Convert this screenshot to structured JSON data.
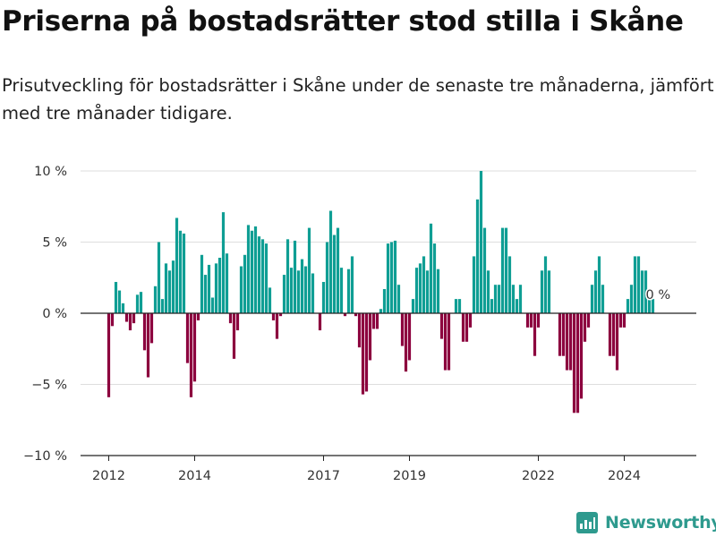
{
  "chart_data": {
    "type": "bar",
    "title": "Priserna på bostadsrätter stod stilla i Skåne",
    "subtitle": "Prisutveckling för bostadsrätter i Skåne under de senaste tre månaderna, jämfört med tre månader tidigare.",
    "x_start_year": 2012,
    "x_start_month": 1,
    "values": [
      -5.9,
      -0.9,
      2.2,
      1.6,
      0.7,
      -0.6,
      -1.2,
      -0.7,
      1.3,
      1.5,
      -2.6,
      -4.5,
      -2.1,
      1.9,
      5.0,
      1.0,
      3.5,
      3.0,
      3.7,
      6.7,
      5.8,
      5.6,
      -3.5,
      -5.9,
      -4.8,
      -0.5,
      4.1,
      2.7,
      3.4,
      1.1,
      3.5,
      3.9,
      7.1,
      4.2,
      -0.7,
      -3.2,
      -1.2,
      3.3,
      4.1,
      6.2,
      5.8,
      6.1,
      5.4,
      5.2,
      4.9,
      1.8,
      -0.5,
      -1.8,
      -0.2,
      2.7,
      5.2,
      3.2,
      5.1,
      3.0,
      3.8,
      3.3,
      6.0,
      2.8,
      0.0,
      -1.2,
      2.2,
      5.0,
      7.2,
      5.5,
      6.0,
      3.2,
      -0.2,
      3.1,
      4.0,
      -0.2,
      -2.4,
      -5.7,
      -5.5,
      -3.3,
      -1.1,
      -1.1,
      0.3,
      1.7,
      4.9,
      5.0,
      5.1,
      2.0,
      -2.3,
      -4.1,
      -3.3,
      1.0,
      3.2,
      3.5,
      4.0,
      3.0,
      6.3,
      4.9,
      3.1,
      -1.8,
      -4.0,
      -4.0,
      0.0,
      1.0,
      1.0,
      -2.0,
      -2.0,
      -1.0,
      4.0,
      8.0,
      10.0,
      6.0,
      3.0,
      1.0,
      2.0,
      2.0,
      6.0,
      6.0,
      4.0,
      2.0,
      1.0,
      2.0,
      0.0,
      -1.0,
      -1.0,
      -3.0,
      -1.0,
      3.0,
      4.0,
      3.0,
      0.0,
      0.0,
      -3.0,
      -3.0,
      -4.0,
      -4.0,
      -7.0,
      -7.0,
      -6.0,
      -2.0,
      -1.0,
      2.0,
      3.0,
      4.0,
      2.0,
      0.0,
      -3.0,
      -3.0,
      -4.0,
      -1.0,
      -1.0,
      1.0,
      2.0,
      4.0,
      4.0,
      3.0,
      3.0,
      1.0,
      1.0,
      0.0
    ],
    "ylim": [
      -10,
      10
    ],
    "yticks": [
      -10,
      -5,
      0,
      5,
      10
    ],
    "ytick_labels": [
      "−10 %",
      "−5 %",
      "0 %",
      "5 %",
      "10 %"
    ],
    "xticks": [
      2012,
      2014,
      2017,
      2019,
      2022,
      2024
    ],
    "xtick_labels": [
      "2012",
      "2014",
      "2017",
      "2019",
      "2022",
      "2024"
    ],
    "last_value_label": "0 %",
    "positive_color": "#0f9e94",
    "negative_color": "#8c003e",
    "grid": true,
    "legend": "none"
  },
  "brand": {
    "name": "Newsworthy",
    "icon": "newsworthy-logo-icon",
    "color": "#2e9a8e"
  }
}
